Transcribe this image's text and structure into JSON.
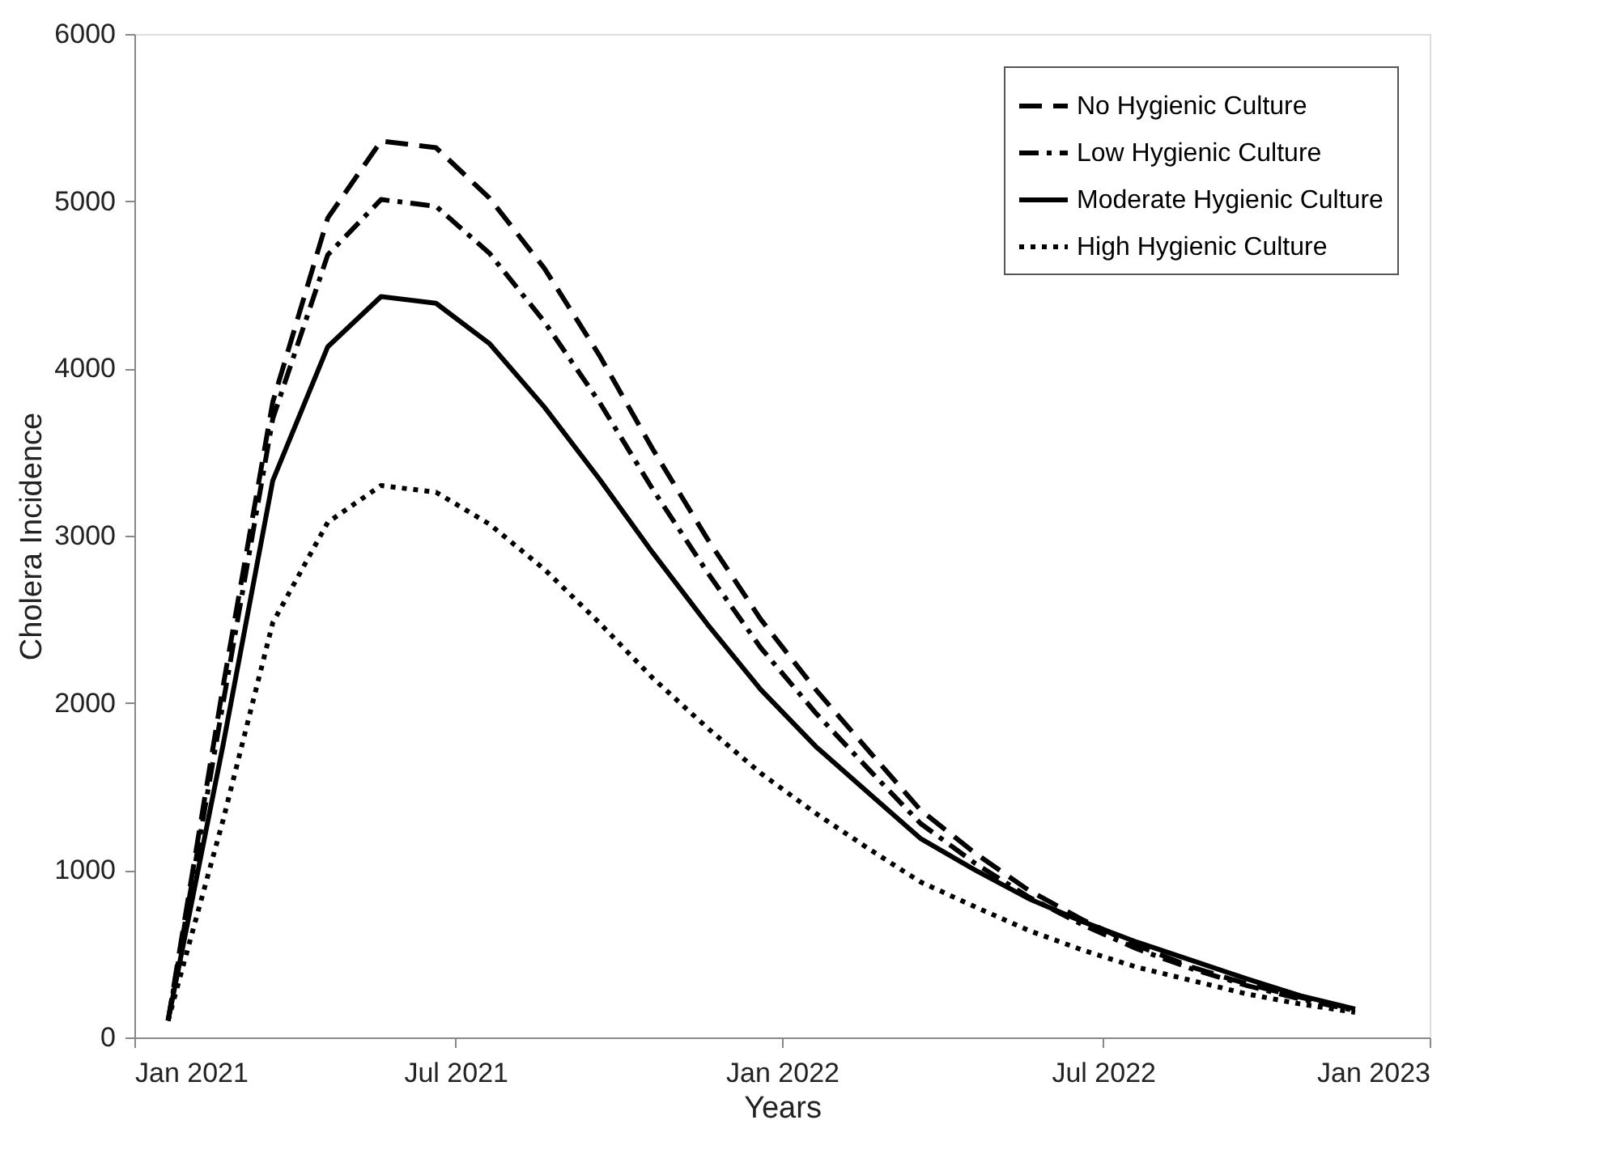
{
  "chart_data": {
    "type": "line",
    "xlabel": "Years",
    "ylabel": "Cholera Incidence",
    "x": [
      "2021-01-20",
      "2021-02-20",
      "2021-03-20",
      "2021-04-20",
      "2021-05-20",
      "2021-06-20",
      "2021-07-20",
      "2021-08-20",
      "2021-09-20",
      "2021-10-20",
      "2021-11-20",
      "2021-12-20",
      "2022-01-20",
      "2022-02-20",
      "2022-03-20",
      "2022-04-20",
      "2022-05-20",
      "2022-06-20",
      "2022-07-20",
      "2022-08-20",
      "2022-09-20",
      "2022-10-20",
      "2022-11-20"
    ],
    "series": [
      {
        "name": "No Hygienic Culture",
        "color": "#000000",
        "line_style": "dashed",
        "values": [
          100,
          2100,
          3800,
          4900,
          5360,
          5320,
          5020,
          4600,
          4080,
          3520,
          2980,
          2500,
          2080,
          1700,
          1360,
          1100,
          880,
          700,
          550,
          420,
          320,
          240,
          170
        ]
      },
      {
        "name": "Low Hygienic Culture",
        "color": "#000000",
        "line_style": "dashdot",
        "values": [
          100,
          2000,
          3700,
          4680,
          5010,
          4970,
          4690,
          4280,
          3800,
          3280,
          2780,
          2330,
          1940,
          1590,
          1280,
          1040,
          840,
          670,
          530,
          410,
          310,
          230,
          160
        ]
      },
      {
        "name": "Moderate Hygienic Culture",
        "color": "#000000",
        "line_style": "solid",
        "values": [
          100,
          1750,
          3330,
          4130,
          4430,
          4390,
          4150,
          3770,
          3340,
          2900,
          2470,
          2080,
          1740,
          1450,
          1190,
          1000,
          830,
          690,
          570,
          460,
          350,
          250,
          170
        ]
      },
      {
        "name": "High Hygienic Culture",
        "color": "#000000",
        "line_style": "dotted",
        "values": [
          100,
          1300,
          2480,
          3080,
          3300,
          3260,
          3070,
          2800,
          2480,
          2150,
          1850,
          1580,
          1340,
          1120,
          930,
          780,
          640,
          520,
          420,
          340,
          260,
          200,
          150
        ]
      }
    ],
    "xlim": [
      "2021-01-01",
      "2023-01-01"
    ],
    "xticks": [
      {
        "value": "2021-01-01",
        "label": "Jan 2021"
      },
      {
        "value": "2021-07-01",
        "label": "Jul 2021"
      },
      {
        "value": "2022-01-01",
        "label": "Jan 2022"
      },
      {
        "value": "2022-07-01",
        "label": "Jul 2022"
      },
      {
        "value": "2023-01-01",
        "label": "Jan 2023"
      }
    ],
    "ylim": [
      0,
      6000
    ],
    "yticks": [
      0,
      1000,
      2000,
      3000,
      4000,
      5000,
      6000
    ],
    "grid": false,
    "legend": "top right",
    "marker": "none"
  }
}
